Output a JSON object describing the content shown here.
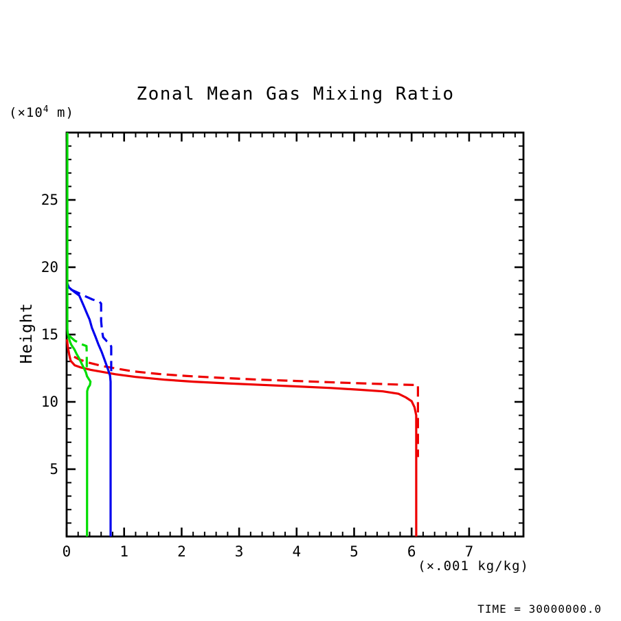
{
  "title": "Zonal Mean Gas Mixing Ratio",
  "labels": {
    "y_unit_prefix": "(×10",
    "y_unit_exp": "4",
    "y_unit_suffix": " m)",
    "y_axis": "Height",
    "x_unit": "(×.001 kg/kg)",
    "time": "TIME = 30000000.0"
  },
  "colors": {
    "axis": "#000000",
    "red": "#ee0000",
    "green": "#00dd00",
    "blue": "#0000ee",
    "background": "#ffffff"
  },
  "chart_data": {
    "type": "line",
    "title": "Zonal Mean Gas Mixing Ratio",
    "xlabel": "(×.001 kg/kg)",
    "ylabel": "Height (×10^4 m)",
    "xlim": [
      0,
      7.945
    ],
    "ylim": [
      0,
      30
    ],
    "x_major_ticks": [
      0,
      1,
      2,
      3,
      4,
      5,
      6,
      7
    ],
    "x_minor_step": 0.2,
    "y_major_ticks": [
      5,
      10,
      15,
      20,
      25
    ],
    "y_minor_step": 1,
    "grid": false,
    "legend": "none",
    "annotation": "TIME = 30000000.0",
    "series": [
      {
        "name": "gas1-solid",
        "color": "#ee0000",
        "dashed": false,
        "points": [
          [
            0.005,
            14.65
          ],
          [
            0.02,
            14.1
          ],
          [
            0.045,
            13.5
          ],
          [
            0.07,
            13.05
          ],
          [
            0.14,
            12.72
          ],
          [
            0.25,
            12.55
          ],
          [
            0.42,
            12.38
          ],
          [
            0.6,
            12.24
          ],
          [
            0.85,
            12.05
          ],
          [
            1.2,
            11.85
          ],
          [
            1.7,
            11.65
          ],
          [
            2.2,
            11.5
          ],
          [
            2.8,
            11.37
          ],
          [
            3.4,
            11.26
          ],
          [
            4.0,
            11.15
          ],
          [
            4.6,
            11.03
          ],
          [
            5.1,
            10.9
          ],
          [
            5.5,
            10.78
          ],
          [
            5.77,
            10.6
          ],
          [
            5.9,
            10.33
          ],
          [
            6.0,
            10.05
          ],
          [
            6.05,
            9.6
          ],
          [
            6.08,
            9.0
          ],
          [
            6.08,
            0
          ]
        ]
      },
      {
        "name": "gas1-dashed",
        "color": "#ee0000",
        "dashed": true,
        "points": [
          [
            0.13,
            13.35
          ],
          [
            0.22,
            13.15
          ],
          [
            0.38,
            12.92
          ],
          [
            0.61,
            12.67
          ],
          [
            0.87,
            12.47
          ],
          [
            1.13,
            12.28
          ],
          [
            1.6,
            12.07
          ],
          [
            2.1,
            11.92
          ],
          [
            2.7,
            11.78
          ],
          [
            3.3,
            11.66
          ],
          [
            4.0,
            11.55
          ],
          [
            4.7,
            11.44
          ],
          [
            5.3,
            11.35
          ],
          [
            5.8,
            11.28
          ],
          [
            6.11,
            11.25
          ],
          [
            6.11,
            5.9
          ]
        ]
      },
      {
        "name": "gas2-solid",
        "color": "#0000ee",
        "dashed": false,
        "points": [
          [
            0.012,
            18.8
          ],
          [
            0.04,
            18.5
          ],
          [
            0.13,
            18.18
          ],
          [
            0.22,
            17.9
          ],
          [
            0.3,
            17.1
          ],
          [
            0.36,
            16.5
          ],
          [
            0.4,
            16.1
          ],
          [
            0.44,
            15.5
          ],
          [
            0.5,
            14.85
          ],
          [
            0.55,
            14.3
          ],
          [
            0.61,
            13.7
          ],
          [
            0.67,
            13.0
          ],
          [
            0.72,
            12.4
          ],
          [
            0.755,
            11.95
          ],
          [
            0.765,
            11.5
          ],
          [
            0.765,
            0
          ]
        ]
      },
      {
        "name": "gas2-dashed",
        "color": "#0000ee",
        "dashed": true,
        "points": [
          [
            0.07,
            18.35
          ],
          [
            0.2,
            18.1
          ],
          [
            0.32,
            17.85
          ],
          [
            0.45,
            17.6
          ],
          [
            0.57,
            17.45
          ],
          [
            0.6,
            17.3
          ],
          [
            0.6,
            16.0
          ],
          [
            0.615,
            15.3
          ],
          [
            0.635,
            14.8
          ],
          [
            0.7,
            14.5
          ],
          [
            0.755,
            14.35
          ],
          [
            0.775,
            14.1
          ],
          [
            0.775,
            12.05
          ]
        ]
      },
      {
        "name": "gas3-solid",
        "color": "#00dd00",
        "dashed": false,
        "points": [
          [
            0.012,
            30
          ],
          [
            0.012,
            15.4
          ],
          [
            0.02,
            15.05
          ],
          [
            0.04,
            14.75
          ],
          [
            0.06,
            14.45
          ],
          [
            0.08,
            14.25
          ],
          [
            0.135,
            13.9
          ],
          [
            0.175,
            13.55
          ],
          [
            0.215,
            13.25
          ],
          [
            0.255,
            12.9
          ],
          [
            0.295,
            12.55
          ],
          [
            0.335,
            12.2
          ],
          [
            0.355,
            11.9
          ],
          [
            0.385,
            11.7
          ],
          [
            0.415,
            11.5
          ],
          [
            0.405,
            11.25
          ],
          [
            0.375,
            11.05
          ],
          [
            0.357,
            10.8
          ],
          [
            0.355,
            0
          ]
        ]
      },
      {
        "name": "gas3-dashed",
        "color": "#00dd00",
        "dashed": true,
        "points": [
          [
            0.04,
            14.93
          ],
          [
            0.14,
            14.55
          ],
          [
            0.26,
            14.28
          ],
          [
            0.345,
            14.15
          ],
          [
            0.35,
            13.6
          ],
          [
            0.35,
            12.25
          ]
        ]
      }
    ]
  }
}
